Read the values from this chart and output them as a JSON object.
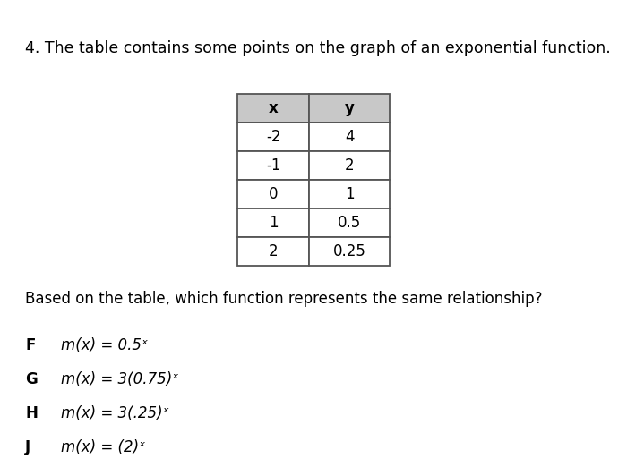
{
  "title": "4. The table contains some points on the graph of an exponential function.",
  "table_headers": [
    "x",
    "y"
  ],
  "table_data": [
    [
      "-2",
      "4"
    ],
    [
      "-1",
      "2"
    ],
    [
      "0",
      "1"
    ],
    [
      "1",
      "0.5"
    ],
    [
      "2",
      "0.25"
    ]
  ],
  "question": "Based on the table, which function represents the same relationship?",
  "choices": [
    [
      "F",
      "m(x) = 0.5ˣ"
    ],
    [
      "G",
      "m(x) = 3(0.75)ˣ"
    ],
    [
      "H",
      "m(x) = 3(.25)ˣ"
    ],
    [
      "J",
      "m(x) = (2)ˣ"
    ]
  ],
  "bg_color": "#ffffff",
  "header_bg": "#c8c8c8",
  "cell_bg": "#ffffff",
  "border_color": "#555555",
  "text_color": "#000000",
  "title_fontsize": 12.5,
  "question_fontsize": 12,
  "choice_fontsize": 12,
  "table_fontsize": 12
}
